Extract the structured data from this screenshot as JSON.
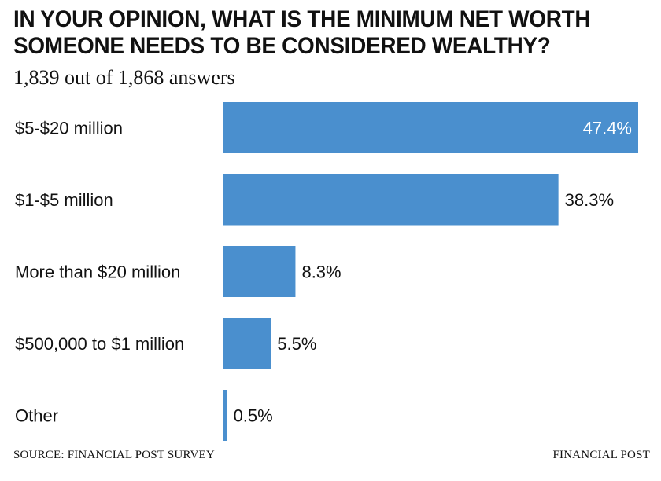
{
  "header": {
    "title_line1": "IN YOUR OPINION, WHAT IS THE MINIMUM NET WORTH",
    "title_line2": "SOMEONE NEEDS TO BE CONSIDERED WEALTHY?",
    "subtitle": "1,839 out of 1,868 answers"
  },
  "footer": {
    "source": "SOURCE: FINANCIAL POST SURVEY",
    "brand": "FINANCIAL POST"
  },
  "colors": {
    "bar": "#4a8fce",
    "text": "#111111"
  },
  "chart_data": {
    "type": "bar",
    "orientation": "horizontal",
    "categories": [
      "$5-$20 million",
      "$1-$5 million",
      "More than $20 million",
      "$500,000 to $1 million",
      "Other"
    ],
    "values": [
      47.4,
      38.3,
      8.3,
      5.5,
      0.5
    ],
    "value_labels": [
      "47.4%",
      "38.3%",
      "8.3%",
      "5.5%",
      "0.5%"
    ],
    "unit": "%",
    "xlim": [
      0,
      47.4
    ],
    "grid": false,
    "legend": "none"
  }
}
